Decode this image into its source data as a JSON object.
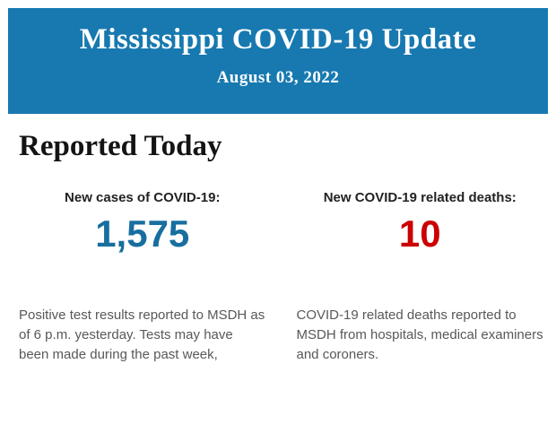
{
  "banner": {
    "title": "Mississippi COVID-19 Update",
    "date": "August 03, 2022",
    "background_color": "#1779B0",
    "text_color": "#FFFFFF"
  },
  "section": {
    "heading": "Reported Today"
  },
  "stats": [
    {
      "id": "new-cases",
      "label": "New cases of COVID-19:",
      "value": "1,575",
      "value_color": "#186E9F",
      "description": "Positive test results reported to MSDH as of 6 p.m. yesterday. Tests may have been made during the past week,"
    },
    {
      "id": "new-deaths",
      "label": "New COVID-19 related deaths:",
      "value": "10",
      "value_color": "#CC0000",
      "description": "COVID-19 related deaths reported to MSDH from hospitals, medical examiners and coroners."
    }
  ]
}
